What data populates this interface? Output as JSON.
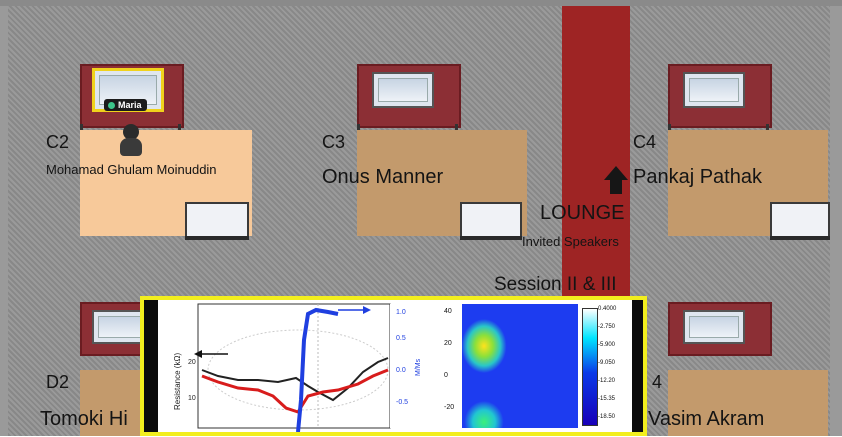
{
  "room": {
    "lounge": {
      "title": "LOUNGE",
      "subtitle": "Invited Speakers"
    },
    "session_label": "Session II & III"
  },
  "booths": [
    {
      "id": "C2",
      "presenter": "Mohamad Ghulam Moinuddin"
    },
    {
      "id": "C3",
      "presenter": "Onus Manner"
    },
    {
      "id": "C4",
      "presenter": "Pankaj Pathak"
    },
    {
      "id": "D2",
      "presenter": "Tomoki Hi"
    },
    {
      "id": "4",
      "presenter": "Vasim Akram"
    }
  ],
  "avatar": {
    "name": "Maria",
    "status_color": "#3cc58a"
  },
  "poster": {
    "y_left_label": "Resistance (kΩ)",
    "y_mid_label": "M/Ms",
    "y_right_label": "H_ex (kOe)",
    "left_ticks": [
      "20",
      "10"
    ],
    "mid_ticks": [
      "1.0",
      "0.5",
      "0.0",
      "-0.5"
    ],
    "heat_ticks": [
      "40",
      "20",
      "0",
      "-20"
    ],
    "colorbar_ticks": [
      "0.4000",
      "-2.750",
      "-5.900",
      "-9.050",
      "-12.20",
      "-15.35",
      "-18.50"
    ]
  },
  "colors": {
    "carpet": "#9e2424",
    "poster_frame": "#f2ee1e",
    "booth": "#8c2f35"
  }
}
